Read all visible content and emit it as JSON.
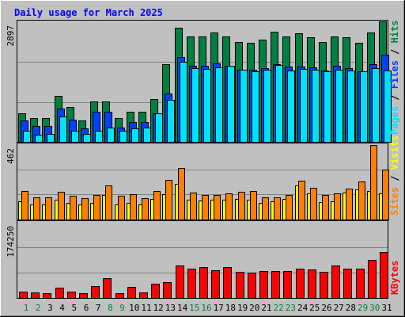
{
  "title": "Daily usage for March 2025",
  "colors": {
    "background": "#c0c0c0",
    "hits": "#008040",
    "files": "#0040ff",
    "pages": "#00e0ff",
    "visits": "#ffff00",
    "sites": "#ff8000",
    "kbytes": "#ff0000",
    "weekend_label": "#008040",
    "weekday_label": "#000000"
  },
  "chart_data": [
    {
      "type": "bar",
      "panel": "top",
      "y_max_label": "2897",
      "ylim": [
        0,
        2897
      ],
      "legend": [
        "Pages",
        "Files",
        "Hits"
      ],
      "categories": [
        "1",
        "2",
        "3",
        "4",
        "5",
        "6",
        "7",
        "8",
        "9",
        "10",
        "11",
        "12",
        "13",
        "14",
        "15",
        "16",
        "17",
        "18",
        "19",
        "20",
        "21",
        "22",
        "23",
        "24",
        "25",
        "26",
        "27",
        "28",
        "29",
        "30",
        "31"
      ],
      "series": [
        {
          "name": "Hits",
          "color": "#008040",
          "values": [
            700,
            570,
            570,
            1110,
            840,
            510,
            970,
            970,
            570,
            720,
            720,
            1040,
            1880,
            2760,
            2550,
            2550,
            2650,
            2550,
            2420,
            2400,
            2470,
            2660,
            2560,
            2630,
            2540,
            2410,
            2550,
            2540,
            2390,
            2650,
            2920
          ]
        },
        {
          "name": "Files",
          "color": "#0040ff",
          "values": [
            510,
            390,
            390,
            800,
            530,
            320,
            720,
            720,
            340,
            480,
            480,
            690,
            1170,
            2050,
            1840,
            1840,
            1890,
            1850,
            1750,
            1750,
            1780,
            1880,
            1820,
            1820,
            1800,
            1720,
            1840,
            1790,
            1700,
            1880,
            2110
          ]
        },
        {
          "name": "Pages",
          "color": "#00e0ff",
          "values": [
            260,
            180,
            200,
            610,
            270,
            190,
            260,
            340,
            260,
            320,
            340,
            690,
            1020,
            1930,
            1790,
            1760,
            1810,
            1850,
            1740,
            1710,
            1750,
            1870,
            1720,
            1760,
            1740,
            1710,
            1740,
            1720,
            1710,
            1790,
            1720
          ]
        }
      ]
    },
    {
      "type": "bar",
      "panel": "middle",
      "y_max_label": "462",
      "ylim": [
        0,
        462
      ],
      "legend": [
        "Sites",
        "Visits"
      ],
      "categories": [
        "1",
        "2",
        "3",
        "4",
        "5",
        "6",
        "7",
        "8",
        "9",
        "10",
        "11",
        "12",
        "13",
        "14",
        "15",
        "16",
        "17",
        "18",
        "19",
        "20",
        "21",
        "22",
        "23",
        "24",
        "25",
        "26",
        "27",
        "28",
        "29",
        "30",
        "31"
      ],
      "series": [
        {
          "name": "Visits",
          "color": "#ffff00",
          "values": [
            115,
            95,
            95,
            125,
            105,
            95,
            105,
            150,
            95,
            105,
            95,
            130,
            155,
            220,
            125,
            120,
            125,
            125,
            130,
            125,
            105,
            115,
            130,
            210,
            160,
            110,
            115,
            165,
            185,
            175,
            160
          ]
        },
        {
          "name": "Sites",
          "color": "#ff8000",
          "values": [
            175,
            140,
            140,
            170,
            145,
            135,
            150,
            210,
            145,
            155,
            135,
            175,
            245,
            320,
            165,
            150,
            150,
            160,
            170,
            175,
            140,
            140,
            150,
            240,
            195,
            150,
            160,
            190,
            235,
            460,
            310
          ]
        }
      ]
    },
    {
      "type": "bar",
      "panel": "bottom",
      "y_max_label": "174250",
      "ylim": [
        0,
        174250
      ],
      "legend": [
        "KBytes"
      ],
      "categories": [
        "1",
        "2",
        "3",
        "4",
        "5",
        "6",
        "7",
        "8",
        "9",
        "10",
        "11",
        "12",
        "13",
        "14",
        "15",
        "16",
        "17",
        "18",
        "19",
        "20",
        "21",
        "22",
        "23",
        "24",
        "25",
        "26",
        "27",
        "28",
        "29",
        "30",
        "31"
      ],
      "series": [
        {
          "name": "KBytes",
          "color": "#ff0000",
          "values": [
            14000,
            12000,
            11000,
            23000,
            15000,
            11000,
            27000,
            45000,
            11000,
            25000,
            12000,
            33000,
            36000,
            76000,
            67000,
            71000,
            65000,
            71000,
            61000,
            58000,
            62000,
            63000,
            62000,
            67000,
            66000,
            60000,
            75000,
            68000,
            68000,
            88000,
            106000
          ]
        }
      ]
    }
  ]
}
